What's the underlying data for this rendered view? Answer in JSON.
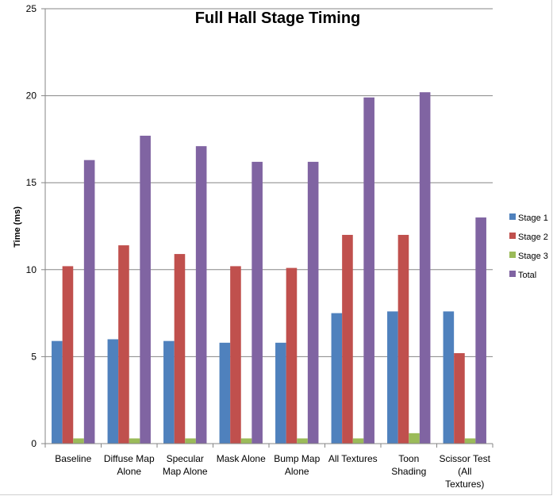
{
  "chart_data": {
    "type": "bar",
    "title": "Full Hall Stage Timing",
    "xlabel": "",
    "ylabel": "Time (ms)",
    "ylim": [
      0,
      25
    ],
    "yticks": [
      0,
      5,
      10,
      15,
      20,
      25
    ],
    "grid": true,
    "legend_position": "right",
    "categories": [
      "Baseline",
      "Diffuse Map Alone",
      "Specular Map Alone",
      "Mask Alone",
      "Bump Map Alone",
      "All Textures",
      "Toon Shading",
      "Scissor Test (All Textures)"
    ],
    "category_lines": [
      [
        "Baseline"
      ],
      [
        "Diffuse Map",
        "Alone"
      ],
      [
        "Specular",
        "Map Alone"
      ],
      [
        "Mask Alone"
      ],
      [
        "Bump Map",
        "Alone"
      ],
      [
        "All Textures"
      ],
      [
        "Toon",
        "Shading"
      ],
      [
        "Scissor Test",
        "(All",
        "Textures)"
      ]
    ],
    "series": [
      {
        "name": "Stage 1",
        "color": "#4F81BD",
        "values": [
          5.9,
          6.0,
          5.9,
          5.8,
          5.8,
          7.5,
          7.6,
          7.6
        ]
      },
      {
        "name": "Stage 2",
        "color": "#C0504D",
        "values": [
          10.2,
          11.4,
          10.9,
          10.2,
          10.1,
          12.0,
          12.0,
          5.2
        ]
      },
      {
        "name": "Stage 3",
        "color": "#9BBB59",
        "values": [
          0.3,
          0.3,
          0.3,
          0.3,
          0.3,
          0.3,
          0.6,
          0.3
        ]
      },
      {
        "name": "Total",
        "color": "#8064A2",
        "values": [
          16.3,
          17.7,
          17.1,
          16.2,
          16.2,
          19.9,
          20.2,
          13.0
        ]
      }
    ]
  }
}
